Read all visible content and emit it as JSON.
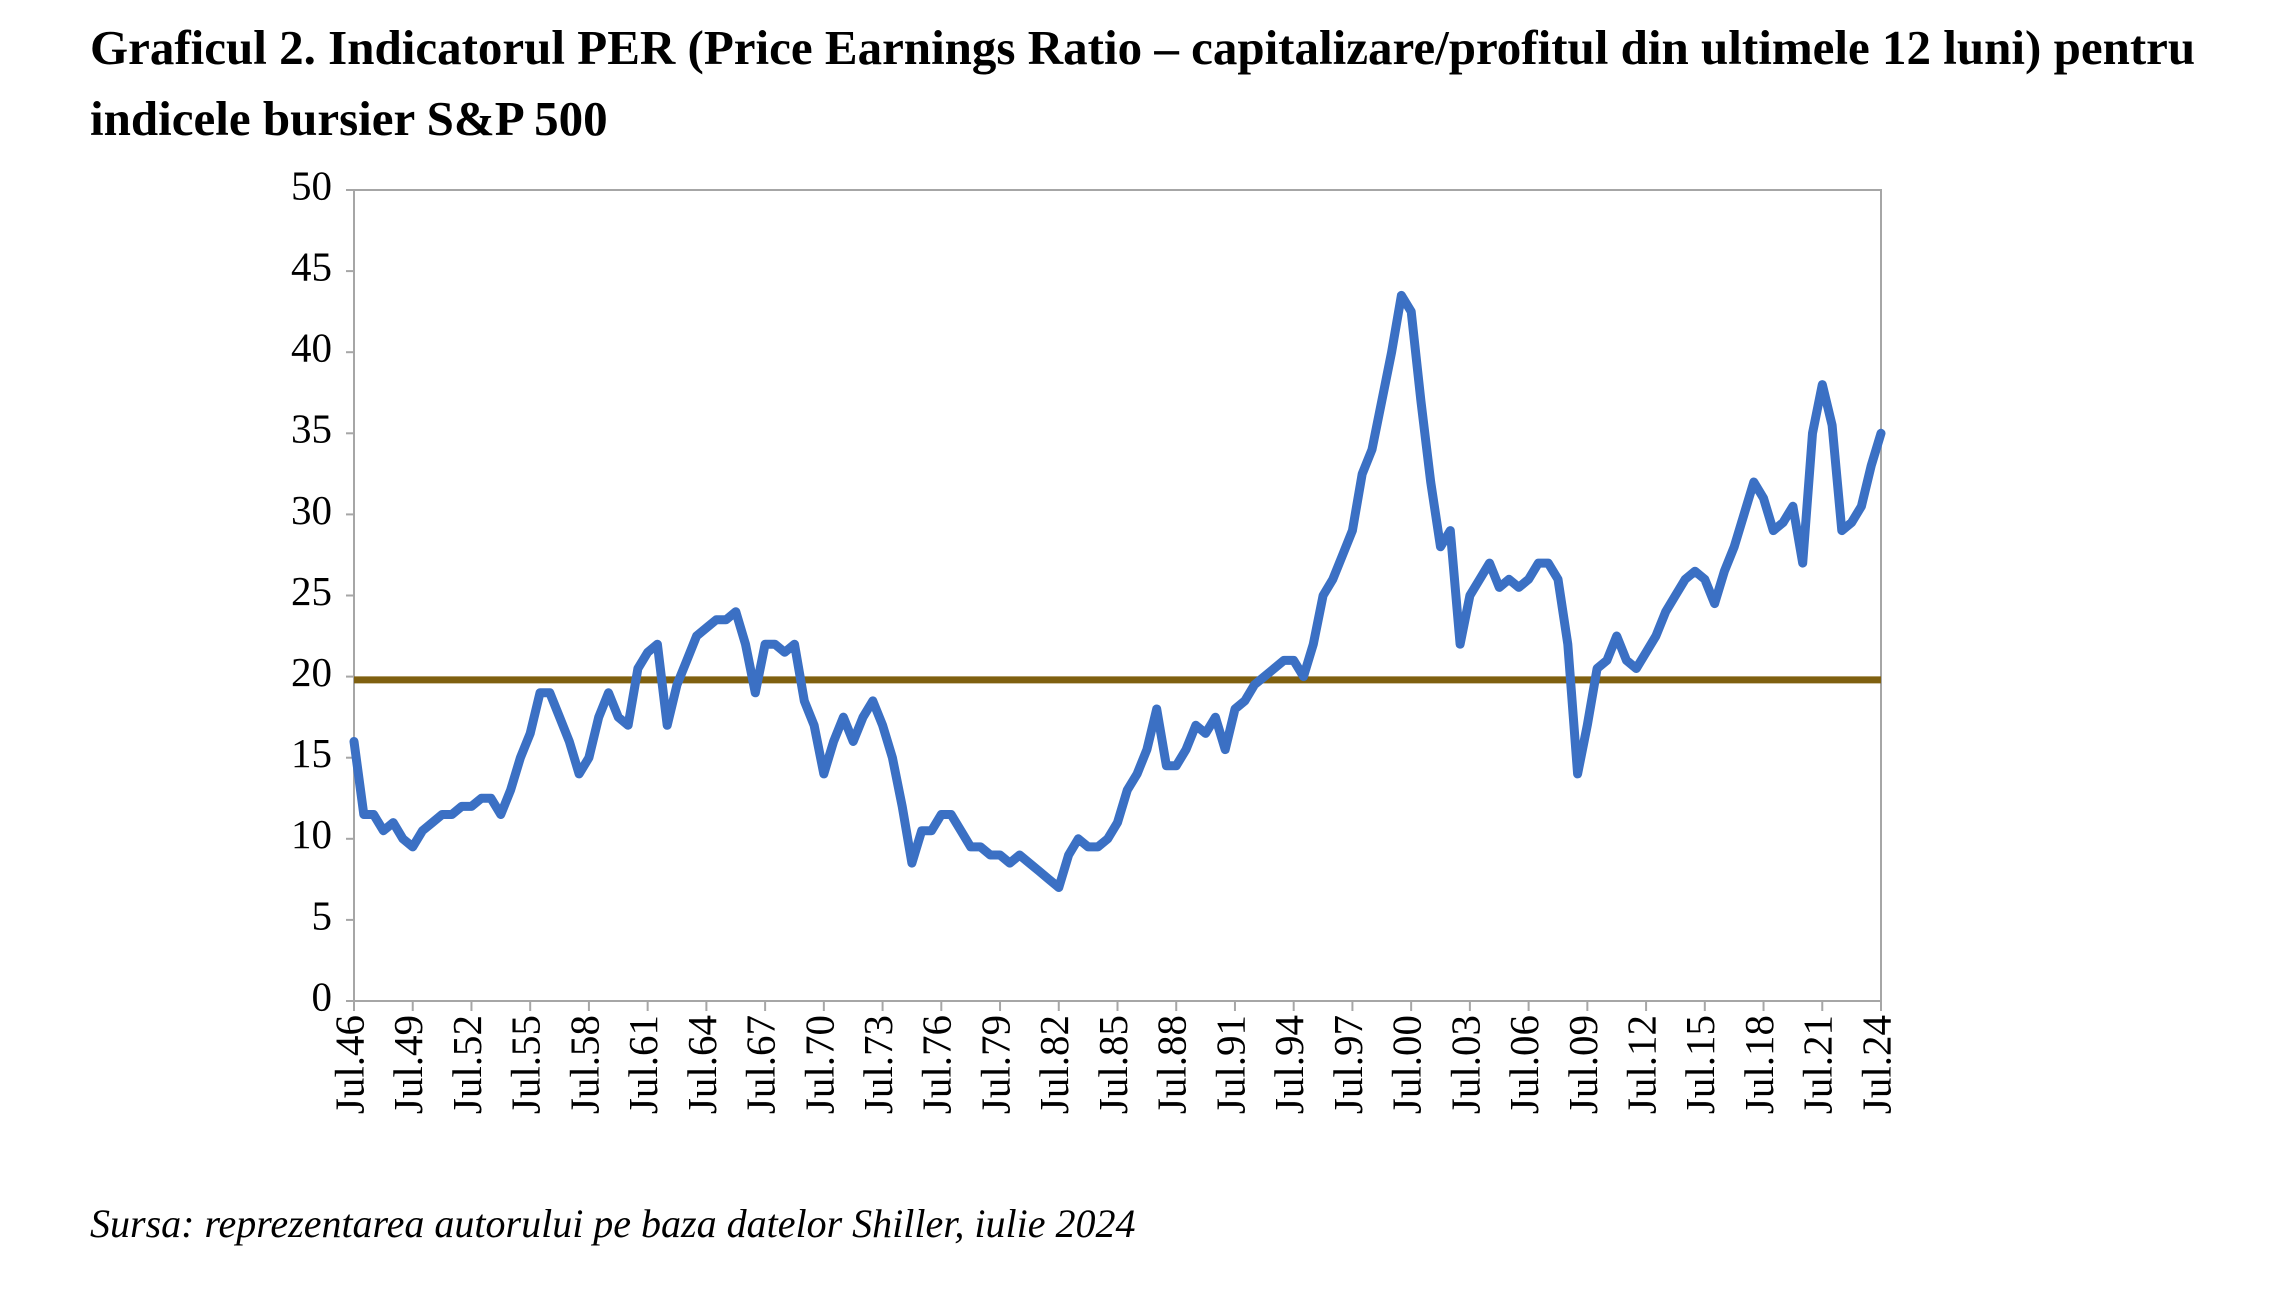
{
  "chart_data": {
    "type": "line",
    "title": "Graficul 2. Indicatorul PER (Price Earnings Ratio – capitalizare/profitul din ultimele 12 luni) pentru indicele bursier S&P 500",
    "source": "Sursa: reprezentarea autorului pe baza datelor Shiller, iulie 2024",
    "categories": [
      "Jul.46",
      null,
      null,
      null,
      null,
      null,
      "Jul.49",
      null,
      null,
      null,
      null,
      null,
      "Jul.52",
      null,
      null,
      null,
      null,
      null,
      "Jul.55",
      null,
      null,
      null,
      null,
      null,
      "Jul.58",
      null,
      null,
      null,
      null,
      null,
      "Jul.61",
      null,
      null,
      null,
      null,
      null,
      "Jul.64",
      null,
      null,
      null,
      null,
      null,
      "Jul.67",
      null,
      null,
      null,
      null,
      null,
      "Jul.70",
      null,
      null,
      null,
      null,
      null,
      "Jul.73",
      null,
      null,
      null,
      null,
      null,
      "Jul.76",
      null,
      null,
      null,
      null,
      null,
      "Jul.79",
      null,
      null,
      null,
      null,
      null,
      "Jul.82",
      null,
      null,
      null,
      null,
      null,
      "Jul.85",
      null,
      null,
      null,
      null,
      null,
      "Jul.88",
      null,
      null,
      null,
      null,
      null,
      "Jul.91",
      null,
      null,
      null,
      null,
      null,
      "Jul.94",
      null,
      null,
      null,
      null,
      null,
      "Jul.97",
      null,
      null,
      null,
      null,
      null,
      "Jul.00",
      null,
      null,
      null,
      null,
      null,
      "Jul.03",
      null,
      null,
      null,
      null,
      null,
      "Jul.06",
      null,
      null,
      null,
      null,
      null,
      "Jul.09",
      null,
      null,
      null,
      null,
      null,
      "Jul.12",
      null,
      null,
      null,
      null,
      null,
      "Jul.15",
      null,
      null,
      null,
      null,
      null,
      "Jul.18",
      null,
      null,
      null,
      null,
      null,
      "Jul.21",
      null,
      null,
      null,
      null,
      null,
      "Jul.24"
    ],
    "series": [
      {
        "color": "#3b70c4",
        "values": [
          16,
          11.5,
          11.5,
          10.5,
          11,
          10,
          9.5,
          10.5,
          11,
          11.5,
          11.5,
          12,
          12,
          12.5,
          12.5,
          11.5,
          13,
          15,
          16.5,
          19,
          19,
          17.5,
          16,
          14,
          15,
          17.5,
          19,
          17.5,
          17,
          20.5,
          21.5,
          22,
          17,
          19.5,
          21,
          22.5,
          23,
          23.5,
          23.5,
          24,
          22,
          19,
          22,
          22,
          21.5,
          22,
          18.5,
          17,
          14,
          16,
          17.5,
          16,
          17.5,
          18.5,
          17,
          15,
          12,
          8.5,
          10.5,
          10.5,
          11.5,
          11.5,
          10.5,
          9.5,
          9.5,
          9,
          9,
          8.5,
          9,
          8.5,
          8,
          7.5,
          7,
          9,
          10,
          9.5,
          9.5,
          10,
          11,
          13,
          14,
          15.5,
          18,
          14.5,
          14.5,
          15.5,
          17,
          16.5,
          17.5,
          15.5,
          18,
          18.5,
          19.5,
          20,
          20.5,
          21,
          21,
          20,
          22,
          25,
          26,
          27.5,
          29,
          32.5,
          34,
          37,
          40,
          43.5,
          42.5,
          37,
          32,
          28,
          29,
          22,
          25,
          26,
          27,
          25.5,
          26,
          25.5,
          26,
          27,
          27,
          26,
          22,
          14,
          17,
          20.5,
          21,
          22.5,
          21,
          20.5,
          21.5,
          22.5,
          24,
          25,
          26,
          26.5,
          26,
          24.5,
          26.5,
          28,
          30,
          32,
          31,
          29,
          29.5,
          30.5,
          27,
          35,
          38,
          35.5,
          29,
          29.5,
          30.5,
          33,
          35
        ]
      }
    ],
    "reference_line": {
      "value": 19.8,
      "color": "#7f6010"
    },
    "ylim": [
      0,
      50
    ],
    "yticks": [
      0,
      5,
      10,
      15,
      20,
      25,
      30,
      35,
      40,
      45,
      50
    ]
  }
}
